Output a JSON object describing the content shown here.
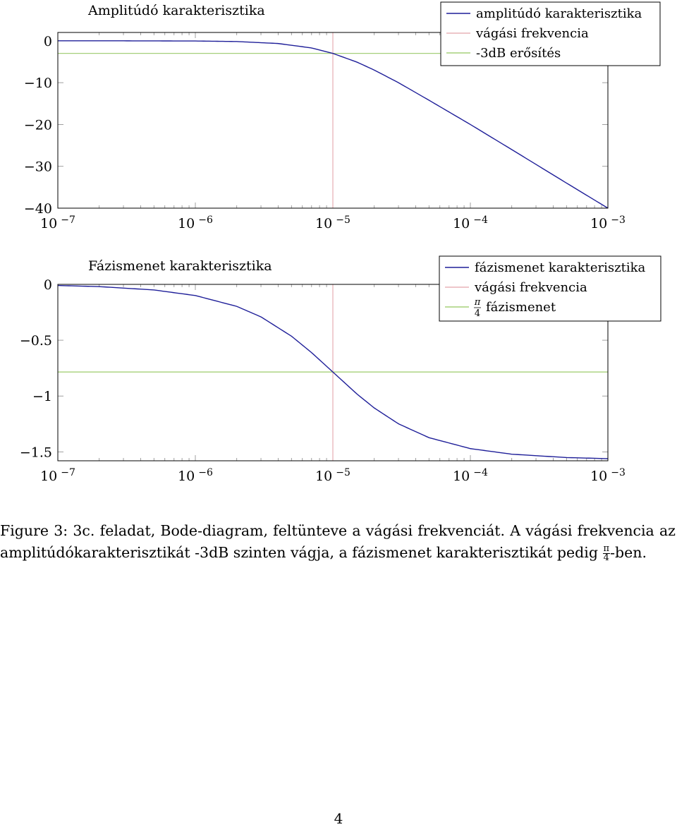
{
  "chart_data": [
    {
      "type": "line",
      "title": "Amplitúdó karakterisztika",
      "x_scale": "log",
      "xlim": [
        1e-07,
        0.001
      ],
      "ylim": [
        -40,
        2
      ],
      "x_ticks": [
        1e-07,
        1e-06,
        1e-05,
        0.0001,
        0.001
      ],
      "x_tick_labels": [
        {
          "base": "10",
          "exp": "−7"
        },
        {
          "base": "10",
          "exp": "−6"
        },
        {
          "base": "10",
          "exp": "−5"
        },
        {
          "base": "10",
          "exp": "−4"
        },
        {
          "base": "10",
          "exp": "−3"
        }
      ],
      "y_ticks": [
        0,
        -10,
        -20,
        -30,
        -40
      ],
      "y_tick_labels": [
        "0",
        "−10",
        "−20",
        "−30",
        "−40"
      ],
      "grid": false,
      "legend_position": "top-right",
      "series": [
        {
          "name": "amplitúdó karakterisztika",
          "color": "#1f1f99",
          "kind": "curve",
          "x": [
            1e-07,
            3e-07,
            1e-06,
            2e-06,
            4e-06,
            7e-06,
            1e-05,
            1.5e-05,
            2e-05,
            3e-05,
            5e-05,
            0.0001,
            0.0002,
            0.0005,
            0.001
          ],
          "y": [
            0,
            0,
            -0.04,
            -0.17,
            -0.64,
            -1.7,
            -3.01,
            -5.1,
            -6.99,
            -10.0,
            -14.2,
            -20.0,
            -26.0,
            -34.0,
            -40.0
          ]
        },
        {
          "name": "vágási frekvencia",
          "color": "#e8b4b8",
          "kind": "vertical",
          "x": 1e-05
        },
        {
          "name": "-3dB erősítés",
          "color": "#a6d07a",
          "kind": "horizontal",
          "y": -3
        }
      ]
    },
    {
      "type": "line",
      "title": "Fázismenet karakterisztika",
      "x_scale": "log",
      "xlim": [
        1e-07,
        0.001
      ],
      "ylim": [
        -1.58,
        0
      ],
      "x_ticks": [
        1e-07,
        1e-06,
        1e-05,
        0.0001,
        0.001
      ],
      "x_tick_labels": [
        {
          "base": "10",
          "exp": "−7"
        },
        {
          "base": "10",
          "exp": "−6"
        },
        {
          "base": "10",
          "exp": "−5"
        },
        {
          "base": "10",
          "exp": "−4"
        },
        {
          "base": "10",
          "exp": "−3"
        }
      ],
      "y_ticks": [
        0,
        -0.5,
        -1,
        -1.5
      ],
      "y_tick_labels": [
        "0",
        "−0.5",
        "−1",
        "−1.5"
      ],
      "grid": false,
      "legend_position": "top-right",
      "series": [
        {
          "name": "fázismenet karakterisztika",
          "color": "#1f1f99",
          "kind": "curve",
          "x": [
            1e-07,
            2e-07,
            5e-07,
            1e-06,
            2e-06,
            3e-06,
            5e-06,
            7e-06,
            1e-05,
            1.5e-05,
            2e-05,
            3e-05,
            5e-05,
            0.0001,
            0.0002,
            0.0005,
            0.001
          ],
          "y": [
            -0.01,
            -0.02,
            -0.05,
            -0.1,
            -0.197,
            -0.291,
            -0.464,
            -0.611,
            -0.785,
            -0.983,
            -1.107,
            -1.249,
            -1.373,
            -1.471,
            -1.521,
            -1.551,
            -1.561
          ]
        },
        {
          "name": "vágási frekvencia",
          "color": "#e8b4b8",
          "kind": "vertical",
          "x": 1e-05
        },
        {
          "name": "fázismenet",
          "name_prefix": {
            "num": "π",
            "den": "4"
          },
          "color": "#a6d07a",
          "kind": "horizontal",
          "y": -0.785
        }
      ]
    }
  ],
  "caption": {
    "label": "Figure 3:",
    "text": "3c. feladat, Bode-diagram, feltünteve a vágási frekvenciát. A vágási frekvencia az amplitúdókarakterisztikát -3dB szinten vágja, a fázismenet karakterisztikát pedig",
    "fraction": {
      "num": "π",
      "den": "4"
    },
    "suffix": "-ben."
  },
  "page_number": "4"
}
